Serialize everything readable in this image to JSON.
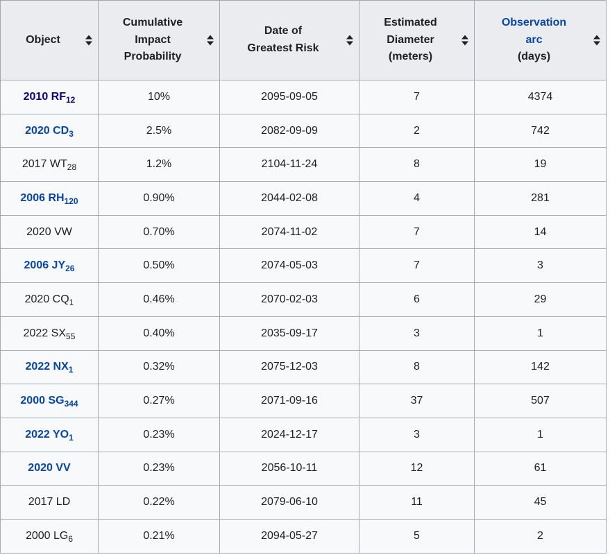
{
  "colors": {
    "header_bg": "#eaecf0",
    "cell_bg": "#f8f9fa",
    "border": "#a2a9b1",
    "text": "#202122",
    "link_blue": "#0645ad",
    "visited_link_blue": "#0b0080",
    "sort_icon": "#202122"
  },
  "table": {
    "columns": [
      {
        "label": "Object",
        "unit": "",
        "sortable": true
      },
      {
        "label": "Cumulative\nImpact\nProbability",
        "unit": "",
        "sortable": true
      },
      {
        "label": "Date of\nGreatest Risk",
        "unit": "",
        "sortable": true
      },
      {
        "label": "Estimated\nDiameter",
        "unit": "(meters)",
        "sortable": true
      },
      {
        "label": "Observation\narc",
        "unit": "(days)",
        "sortable": true,
        "is_link": true
      }
    ],
    "rows": [
      {
        "name": "2010 RF",
        "sub": "12",
        "link_state": "visited",
        "probability": "10%",
        "date": "2095-09-05",
        "diameter": "7",
        "arc": "4374"
      },
      {
        "name": "2020 CD",
        "sub": "3",
        "link_state": "link",
        "probability": "2.5%",
        "date": "2082-09-09",
        "diameter": "2",
        "arc": "742"
      },
      {
        "name": "2017 WT",
        "sub": "28",
        "link_state": "plain",
        "probability": "1.2%",
        "date": "2104-11-24",
        "diameter": "8",
        "arc": "19"
      },
      {
        "name": "2006 RH",
        "sub": "120",
        "link_state": "link",
        "probability": "0.90%",
        "date": "2044-02-08",
        "diameter": "4",
        "arc": "281"
      },
      {
        "name": "2020 VW",
        "sub": "",
        "link_state": "plain",
        "probability": "0.70%",
        "date": "2074-11-02",
        "diameter": "7",
        "arc": "14"
      },
      {
        "name": "2006 JY",
        "sub": "26",
        "link_state": "link",
        "probability": "0.50%",
        "date": "2074-05-03",
        "diameter": "7",
        "arc": "3"
      },
      {
        "name": "2020 CQ",
        "sub": "1",
        "link_state": "plain",
        "probability": "0.46%",
        "date": "2070-02-03",
        "diameter": "6",
        "arc": "29"
      },
      {
        "name": "2022 SX",
        "sub": "55",
        "link_state": "plain",
        "probability": "0.40%",
        "date": "2035-09-17",
        "diameter": "3",
        "arc": "1"
      },
      {
        "name": "2022 NX",
        "sub": "1",
        "link_state": "link",
        "probability": "0.32%",
        "date": "2075-12-03",
        "diameter": "8",
        "arc": "142"
      },
      {
        "name": "2000 SG",
        "sub": "344",
        "link_state": "link",
        "probability": "0.27%",
        "date": "2071-09-16",
        "diameter": "37",
        "arc": "507"
      },
      {
        "name": "2022 YO",
        "sub": "1",
        "link_state": "link",
        "probability": "0.23%",
        "date": "2024-12-17",
        "diameter": "3",
        "arc": "1"
      },
      {
        "name": "2020 VV",
        "sub": "",
        "link_state": "link",
        "probability": "0.23%",
        "date": "2056-10-11",
        "diameter": "12",
        "arc": "61"
      },
      {
        "name": "2017 LD",
        "sub": "",
        "link_state": "plain",
        "probability": "0.22%",
        "date": "2079-06-10",
        "diameter": "11",
        "arc": "45"
      },
      {
        "name": "2000 LG",
        "sub": "6",
        "link_state": "plain",
        "probability": "0.21%",
        "date": "2094-05-27",
        "diameter": "5",
        "arc": "2"
      }
    ]
  }
}
